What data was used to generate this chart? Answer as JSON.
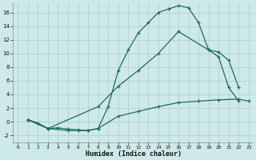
{
  "xlabel": "Humidex (Indice chaleur)",
  "bg_color": "#ceeae8",
  "grid_color": "#b8d4d2",
  "line_color": "#1a6b5e",
  "xlim": [
    -0.5,
    23.5
  ],
  "ylim": [
    -3.0,
    17.5
  ],
  "x_ticks": [
    0,
    1,
    2,
    3,
    4,
    5,
    6,
    7,
    8,
    9,
    10,
    11,
    12,
    13,
    14,
    15,
    16,
    17,
    18,
    19,
    20,
    21,
    22,
    23
  ],
  "y_ticks": [
    -2,
    0,
    2,
    4,
    6,
    8,
    10,
    12,
    14,
    16
  ],
  "curve1_x": [
    1,
    2,
    3,
    4,
    5,
    6,
    7,
    8,
    9,
    10,
    11,
    12,
    13,
    14,
    15,
    16,
    17,
    18,
    19,
    20,
    21,
    22
  ],
  "curve1_y": [
    0.3,
    -0.2,
    -1.0,
    -0.9,
    -1.1,
    -1.2,
    -1.3,
    -1.0,
    2.2,
    7.5,
    10.5,
    13.0,
    14.5,
    16.0,
    16.5,
    17.0,
    16.7,
    14.5,
    10.5,
    9.5,
    5.0,
    3.0
  ],
  "curve2_x": [
    1,
    3,
    8,
    10,
    12,
    14,
    16,
    19,
    20,
    21,
    22
  ],
  "curve2_y": [
    0.3,
    -1.0,
    2.2,
    5.2,
    7.5,
    10.0,
    13.2,
    10.5,
    10.2,
    9.0,
    5.0
  ],
  "curve3_x": [
    1,
    3,
    5,
    6,
    7,
    8,
    10,
    12,
    14,
    16,
    18,
    20,
    22,
    23
  ],
  "curve3_y": [
    0.3,
    -1.0,
    -1.3,
    -1.3,
    -1.3,
    -1.0,
    0.8,
    1.5,
    2.2,
    2.8,
    3.0,
    3.2,
    3.3,
    3.0
  ]
}
